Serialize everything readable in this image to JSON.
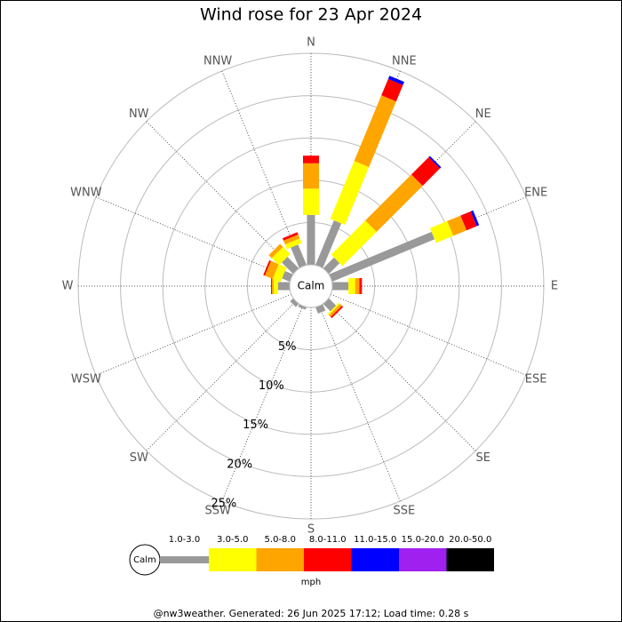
{
  "chart_data": {
    "type": "windrose",
    "title": "Wind rose for 23 Apr 2024",
    "directions": [
      "N",
      "NNE",
      "NE",
      "ENE",
      "E",
      "ESE",
      "SE",
      "SSE",
      "S",
      "SSW",
      "SW",
      "WSW",
      "W",
      "WNW",
      "NW",
      "NNW"
    ],
    "calm_label": "Calm",
    "unit_label": "mph",
    "footer": "@nw3weather. Generated: 26 Jun 2025 17:12; Load time: 0.28 s",
    "rlim": [
      0,
      25
    ],
    "rticks": [
      {
        "value": 5,
        "label": "5%"
      },
      {
        "value": 10,
        "label": "10%"
      },
      {
        "value": 15,
        "label": "15%"
      },
      {
        "value": 20,
        "label": "20%"
      },
      {
        "value": 25,
        "label": "25%"
      }
    ],
    "series": [
      {
        "name": "1.0-3.0",
        "color": "#999999",
        "values": [
          5.9,
          5.7,
          1.8,
          13.1,
          1.9,
          0,
          1.2,
          0.8,
          0,
          0.3,
          0.5,
          0,
          1.4,
          1.0,
          1.9,
          2.6
        ]
      },
      {
        "name": "3.0-5.0",
        "color": "#ffff00",
        "values": [
          3.1,
          7.4,
          5.7,
          2.2,
          0.8,
          0,
          0.2,
          0,
          0,
          0,
          0,
          0,
          0.5,
          1.0,
          1.2,
          0.6
        ]
      },
      {
        "name": "5.0-8.0",
        "color": "#ffa500",
        "values": [
          3.0,
          8.4,
          7.7,
          1.7,
          0.5,
          0,
          0.3,
          0,
          0,
          0,
          0,
          0,
          0.2,
          1.0,
          0.5,
          0.5
        ]
      },
      {
        "name": "8.0-11.0",
        "color": "#ff0000",
        "values": [
          0.9,
          2.1,
          2.9,
          1.3,
          0.3,
          0,
          0.2,
          0,
          0,
          0,
          0,
          0,
          0.1,
          0.2,
          0,
          0.3
        ]
      },
      {
        "name": "11.0-15.0",
        "color": "#0000ff",
        "values": [
          0,
          0.4,
          0.2,
          0.3,
          0,
          0,
          0,
          0,
          0,
          0,
          0,
          0,
          0,
          0,
          0,
          0
        ]
      },
      {
        "name": "15.0-20.0",
        "color": "#a020f0",
        "values": [
          0,
          0,
          0,
          0,
          0,
          0,
          0,
          0,
          0,
          0,
          0,
          0,
          0,
          0,
          0,
          0
        ]
      },
      {
        "name": "20.0-50.0",
        "color": "#000000",
        "values": [
          0,
          0,
          0,
          0,
          0,
          0,
          0,
          0,
          0,
          0,
          0,
          0,
          0,
          0,
          0,
          0
        ]
      }
    ]
  }
}
